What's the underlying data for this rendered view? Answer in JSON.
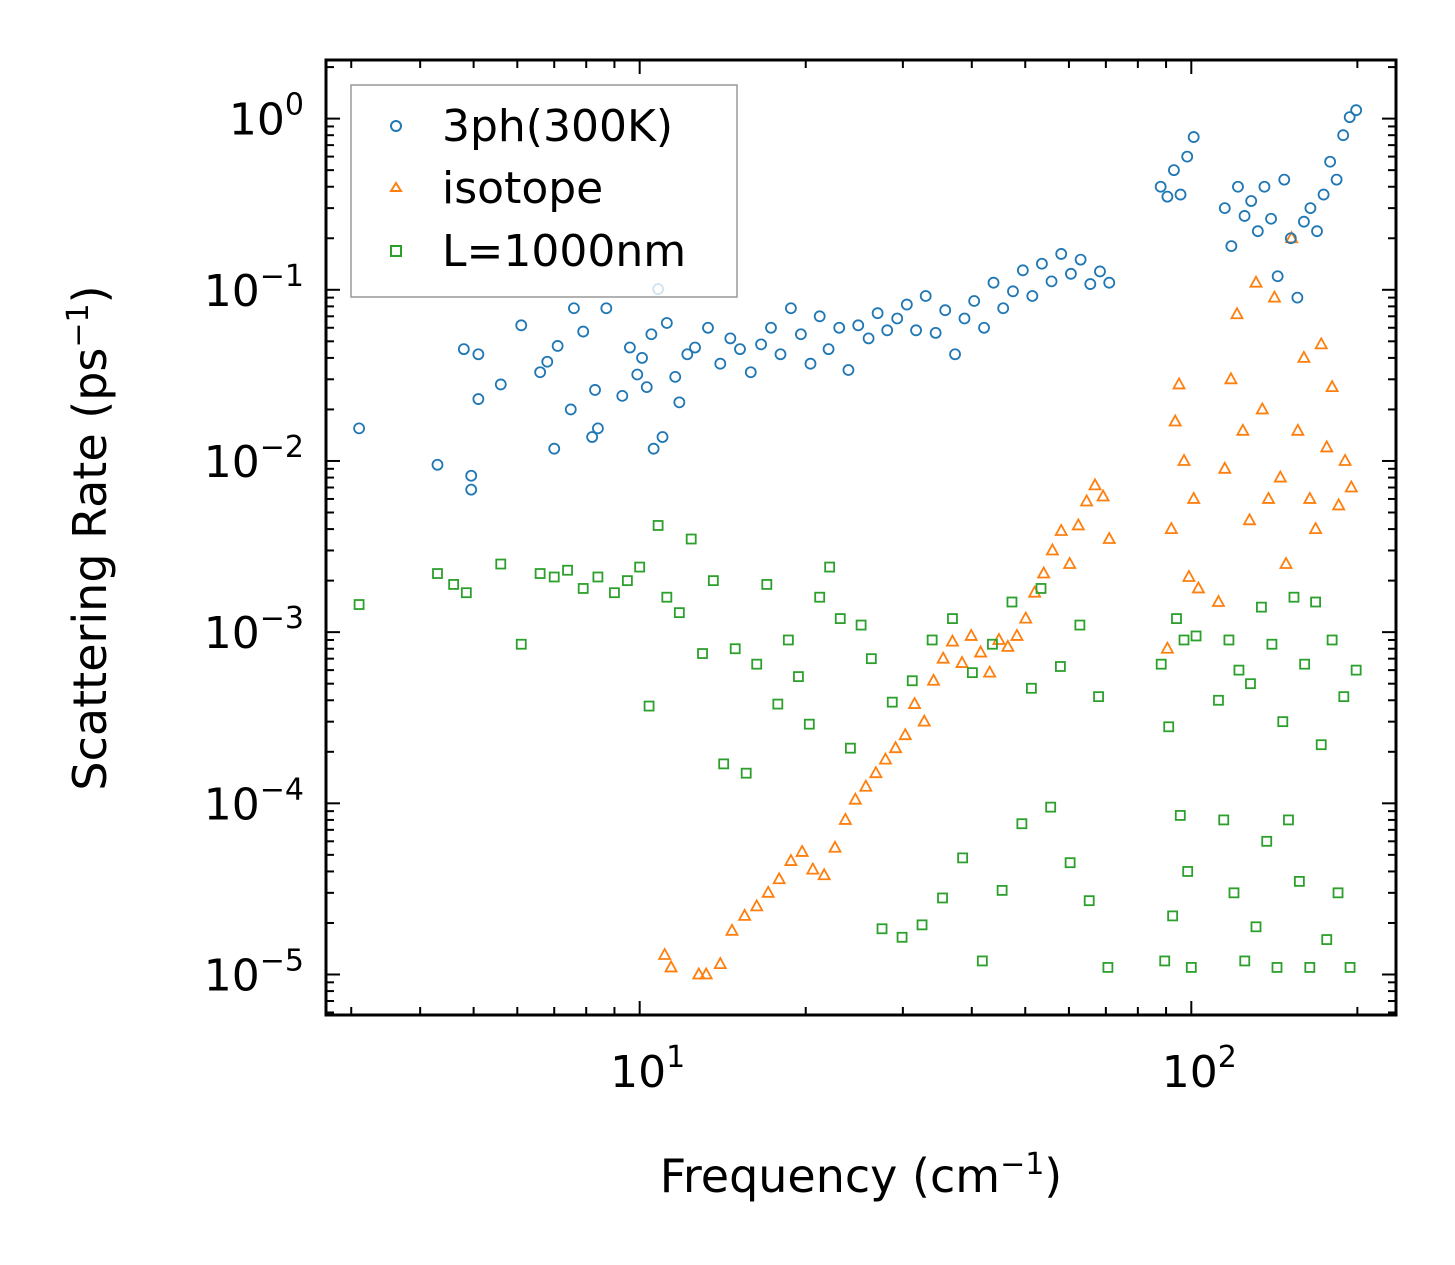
{
  "chart_data": {
    "type": "scatter",
    "title": "",
    "xlabel": "Frequency (cm",
    "xlabel_sup": "−1",
    "xlabel_end": ")",
    "ylabel": "Scattering Rate (ps",
    "ylabel_sup": "−1",
    "ylabel_end": ")",
    "xscale": "log",
    "yscale": "log",
    "xlim": [
      2.7,
      235
    ],
    "ylim": [
      5.8e-06,
      2.2
    ],
    "x_ticks": [
      {
        "base": "10",
        "exp": "1",
        "value": 10
      },
      {
        "base": "10",
        "exp": "2",
        "value": 100
      }
    ],
    "y_ticks": [
      {
        "base": "10",
        "exp": "0",
        "value": 1
      },
      {
        "base": "10",
        "exp": "−1",
        "value": 0.1
      },
      {
        "base": "10",
        "exp": "−2",
        "value": 0.01
      },
      {
        "base": "10",
        "exp": "−3",
        "value": 0.001
      },
      {
        "base": "10",
        "exp": "−4",
        "value": 0.0001
      },
      {
        "base": "10",
        "exp": "−5",
        "value": 1e-05
      }
    ],
    "legend_position": "top-left",
    "series": [
      {
        "name": "3ph(300K)",
        "marker": "circle",
        "color": "#1f77b4",
        "points": [
          [
            3.1,
            0.0155
          ],
          [
            4.3,
            0.0095
          ],
          [
            4.8,
            0.045
          ],
          [
            4.95,
            0.0068
          ],
          [
            4.95,
            0.0082
          ],
          [
            5.1,
            0.023
          ],
          [
            5.1,
            0.042
          ],
          [
            5.6,
            0.028
          ],
          [
            6.1,
            0.062
          ],
          [
            6.6,
            0.033
          ],
          [
            6.8,
            0.038
          ],
          [
            7.0,
            0.0118
          ],
          [
            7.1,
            0.047
          ],
          [
            7.5,
            0.02
          ],
          [
            7.6,
            0.078
          ],
          [
            7.9,
            0.057
          ],
          [
            8.2,
            0.0138
          ],
          [
            8.3,
            0.026
          ],
          [
            8.4,
            0.0155
          ],
          [
            8.7,
            0.078
          ],
          [
            9.3,
            0.024
          ],
          [
            9.6,
            0.046
          ],
          [
            9.9,
            0.032
          ],
          [
            10.1,
            0.04
          ],
          [
            10.3,
            0.027
          ],
          [
            10.5,
            0.055
          ],
          [
            10.6,
            0.0118
          ],
          [
            10.8,
            0.101
          ],
          [
            11.0,
            0.0138
          ],
          [
            11.2,
            0.064
          ],
          [
            11.6,
            0.031
          ],
          [
            11.8,
            0.022
          ],
          [
            12.2,
            0.042
          ],
          [
            12.6,
            0.046
          ],
          [
            13.3,
            0.06
          ],
          [
            14.0,
            0.037
          ],
          [
            14.6,
            0.052
          ],
          [
            15.2,
            0.045
          ],
          [
            15.9,
            0.033
          ],
          [
            16.6,
            0.048
          ],
          [
            17.3,
            0.06
          ],
          [
            18.0,
            0.042
          ],
          [
            18.8,
            0.078
          ],
          [
            19.6,
            0.055
          ],
          [
            20.4,
            0.037
          ],
          [
            21.2,
            0.07
          ],
          [
            22.0,
            0.045
          ],
          [
            23.0,
            0.06
          ],
          [
            23.9,
            0.034
          ],
          [
            24.9,
            0.062
          ],
          [
            26.0,
            0.052
          ],
          [
            27.0,
            0.073
          ],
          [
            28.1,
            0.058
          ],
          [
            29.3,
            0.068
          ],
          [
            30.5,
            0.082
          ],
          [
            31.7,
            0.058
          ],
          [
            33.0,
            0.092
          ],
          [
            34.4,
            0.056
          ],
          [
            35.8,
            0.076
          ],
          [
            37.3,
            0.042
          ],
          [
            38.8,
            0.068
          ],
          [
            40.4,
            0.086
          ],
          [
            42.1,
            0.06
          ],
          [
            43.8,
            0.11
          ],
          [
            45.6,
            0.078
          ],
          [
            47.5,
            0.098
          ],
          [
            49.5,
            0.13
          ],
          [
            51.5,
            0.092
          ],
          [
            53.6,
            0.142
          ],
          [
            55.8,
            0.112
          ],
          [
            58.1,
            0.162
          ],
          [
            60.5,
            0.124
          ],
          [
            63.0,
            0.15
          ],
          [
            65.6,
            0.108
          ],
          [
            68.3,
            0.128
          ],
          [
            71.0,
            0.11
          ],
          [
            88.0,
            0.4
          ],
          [
            90.5,
            0.35
          ],
          [
            93.0,
            0.5
          ],
          [
            95.6,
            0.36
          ],
          [
            98.3,
            0.6
          ],
          [
            101.0,
            0.78
          ],
          [
            115.0,
            0.3
          ],
          [
            118.2,
            0.18
          ],
          [
            121.5,
            0.4
          ],
          [
            124.9,
            0.27
          ],
          [
            128.4,
            0.33
          ],
          [
            132.0,
            0.22
          ],
          [
            135.7,
            0.4
          ],
          [
            139.5,
            0.26
          ],
          [
            143.4,
            0.12
          ],
          [
            147.4,
            0.44
          ],
          [
            151.5,
            0.2
          ],
          [
            155.7,
            0.09
          ],
          [
            160.0,
            0.25
          ],
          [
            164.4,
            0.3
          ],
          [
            169.0,
            0.22
          ],
          [
            173.7,
            0.36
          ],
          [
            178.5,
            0.56
          ],
          [
            183.4,
            0.44
          ],
          [
            188.5,
            0.8
          ],
          [
            193.7,
            1.02
          ],
          [
            199.0,
            1.12
          ]
        ]
      },
      {
        "name": "isotope",
        "marker": "triangle",
        "color": "#ff7f0e",
        "points": [
          [
            11.1,
            1.3e-05
          ],
          [
            11.4,
            1.1e-05
          ],
          [
            12.8,
            1e-05
          ],
          [
            13.2,
            1e-05
          ],
          [
            14.0,
            1.15e-05
          ],
          [
            14.7,
            1.8e-05
          ],
          [
            15.5,
            2.2e-05
          ],
          [
            16.3,
            2.5e-05
          ],
          [
            17.1,
            3e-05
          ],
          [
            17.9,
            3.6e-05
          ],
          [
            18.8,
            4.6e-05
          ],
          [
            19.7,
            5.2e-05
          ],
          [
            20.6,
            4.1e-05
          ],
          [
            21.6,
            3.8e-05
          ],
          [
            22.6,
            5.5e-05
          ],
          [
            23.6,
            8e-05
          ],
          [
            24.6,
            0.000105
          ],
          [
            25.7,
            0.000125
          ],
          [
            26.8,
            0.00015
          ],
          [
            27.9,
            0.00018
          ],
          [
            29.1,
            0.00021
          ],
          [
            30.3,
            0.00025
          ],
          [
            31.5,
            0.00038
          ],
          [
            32.8,
            0.0003
          ],
          [
            34.1,
            0.00052
          ],
          [
            35.5,
            0.0007
          ],
          [
            36.9,
            0.00088
          ],
          [
            38.4,
            0.00066
          ],
          [
            39.9,
            0.00095
          ],
          [
            41.5,
            0.00076
          ],
          [
            43.1,
            0.00058
          ],
          [
            44.8,
            0.0009
          ],
          [
            46.5,
            0.00082
          ],
          [
            48.3,
            0.00095
          ],
          [
            50.1,
            0.0012
          ],
          [
            52.0,
            0.0017
          ],
          [
            54.0,
            0.0022
          ],
          [
            56.0,
            0.003
          ],
          [
            58.1,
            0.0039
          ],
          [
            60.2,
            0.0025
          ],
          [
            62.4,
            0.0042
          ],
          [
            64.6,
            0.0058
          ],
          [
            66.9,
            0.0072
          ],
          [
            69.2,
            0.0062
          ],
          [
            71.0,
            0.0035
          ],
          [
            90.5,
            0.0008
          ],
          [
            92.0,
            0.004
          ],
          [
            93.5,
            0.017
          ],
          [
            95.0,
            0.028
          ],
          [
            97.0,
            0.01
          ],
          [
            99.0,
            0.0021
          ],
          [
            101.0,
            0.006
          ],
          [
            103.0,
            0.0018
          ],
          [
            112.0,
            0.0015
          ],
          [
            115.0,
            0.009
          ],
          [
            118.0,
            0.03
          ],
          [
            121.0,
            0.072
          ],
          [
            124.0,
            0.015
          ],
          [
            127.5,
            0.0045
          ],
          [
            131.0,
            0.11
          ],
          [
            134.5,
            0.02
          ],
          [
            138.0,
            0.006
          ],
          [
            141.5,
            0.09
          ],
          [
            145.0,
            0.008
          ],
          [
            148.5,
            0.0025
          ],
          [
            152.0,
            0.2
          ],
          [
            156.0,
            0.015
          ],
          [
            160.0,
            0.04
          ],
          [
            164.0,
            0.006
          ],
          [
            168.0,
            0.004
          ],
          [
            172.0,
            0.048
          ],
          [
            176.0,
            0.012
          ],
          [
            180.0,
            0.027
          ],
          [
            185.0,
            0.0055
          ],
          [
            190.0,
            0.01
          ],
          [
            195.0,
            0.007
          ]
        ]
      },
      {
        "name": "L=1000nm",
        "marker": "square",
        "color": "#2ca02c",
        "points": [
          [
            3.1,
            0.00145
          ],
          [
            4.3,
            0.0022
          ],
          [
            4.6,
            0.0019
          ],
          [
            4.85,
            0.0017
          ],
          [
            5.6,
            0.0025
          ],
          [
            6.1,
            0.00085
          ],
          [
            6.6,
            0.0022
          ],
          [
            7.0,
            0.0021
          ],
          [
            7.4,
            0.0023
          ],
          [
            7.9,
            0.0018
          ],
          [
            8.4,
            0.0021
          ],
          [
            9.0,
            0.0017
          ],
          [
            9.5,
            0.002
          ],
          [
            10.0,
            0.0024
          ],
          [
            10.4,
            0.00037
          ],
          [
            10.8,
            0.0042
          ],
          [
            11.2,
            0.0016
          ],
          [
            11.8,
            0.0013
          ],
          [
            12.4,
            0.0035
          ],
          [
            13.0,
            0.00075
          ],
          [
            13.6,
            0.002
          ],
          [
            14.2,
            0.00017
          ],
          [
            14.9,
            0.0008
          ],
          [
            15.6,
            0.00015
          ],
          [
            16.3,
            0.00065
          ],
          [
            17.0,
            0.0019
          ],
          [
            17.8,
            0.00038
          ],
          [
            18.6,
            0.0009
          ],
          [
            19.4,
            0.00055
          ],
          [
            20.3,
            0.00029
          ],
          [
            21.2,
            0.0016
          ],
          [
            22.1,
            0.0024
          ],
          [
            23.1,
            0.0012
          ],
          [
            24.1,
            0.00021
          ],
          [
            25.2,
            0.0011
          ],
          [
            26.3,
            0.0007
          ],
          [
            27.5,
            1.85e-05
          ],
          [
            28.7,
            0.00039
          ],
          [
            29.9,
            1.65e-05
          ],
          [
            31.2,
            0.00052
          ],
          [
            32.5,
            1.95e-05
          ],
          [
            33.9,
            0.0009
          ],
          [
            35.4,
            2.8e-05
          ],
          [
            36.9,
            0.0012
          ],
          [
            38.5,
            4.8e-05
          ],
          [
            40.1,
            0.00058
          ],
          [
            41.8,
            1.2e-05
          ],
          [
            43.6,
            0.00085
          ],
          [
            45.4,
            3.1e-05
          ],
          [
            47.3,
            0.0015
          ],
          [
            49.3,
            7.6e-05
          ],
          [
            51.3,
            0.00047
          ],
          [
            53.4,
            0.0018
          ],
          [
            55.6,
            9.5e-05
          ],
          [
            57.9,
            0.00063
          ],
          [
            60.3,
            4.5e-05
          ],
          [
            62.8,
            0.0011
          ],
          [
            65.3,
            2.7e-05
          ],
          [
            67.9,
            0.00042
          ],
          [
            70.6,
            1.1e-05
          ],
          [
            88.2,
            0.00065
          ],
          [
            89.5,
            1.2e-05
          ],
          [
            91.0,
            0.00028
          ],
          [
            92.5,
            2.2e-05
          ],
          [
            94.0,
            0.0012
          ],
          [
            95.5,
            8.5e-05
          ],
          [
            97.0,
            0.0009
          ],
          [
            98.5,
            4e-05
          ],
          [
            100.0,
            1.1e-05
          ],
          [
            102.0,
            0.00095
          ],
          [
            112.0,
            0.0004
          ],
          [
            114.5,
            8e-05
          ],
          [
            117.0,
            0.0009
          ],
          [
            119.5,
            3e-05
          ],
          [
            122.0,
            0.0006
          ],
          [
            125.0,
            1.2e-05
          ],
          [
            128.0,
            0.0005
          ],
          [
            131.0,
            1.9e-05
          ],
          [
            134.0,
            0.0014
          ],
          [
            137.0,
            6e-05
          ],
          [
            140.0,
            0.00085
          ],
          [
            143.0,
            1.1e-05
          ],
          [
            146.5,
            0.0003
          ],
          [
            150.0,
            8e-05
          ],
          [
            153.5,
            0.0016
          ],
          [
            157.0,
            3.5e-05
          ],
          [
            160.5,
            0.00065
          ],
          [
            164.0,
            1.1e-05
          ],
          [
            168.0,
            0.0015
          ],
          [
            172.0,
            0.00022
          ],
          [
            176.0,
            1.6e-05
          ],
          [
            180.0,
            0.0009
          ],
          [
            184.5,
            3e-05
          ],
          [
            189.0,
            0.00042
          ],
          [
            194.0,
            1.1e-05
          ],
          [
            199.0,
            0.0006
          ]
        ]
      }
    ]
  }
}
